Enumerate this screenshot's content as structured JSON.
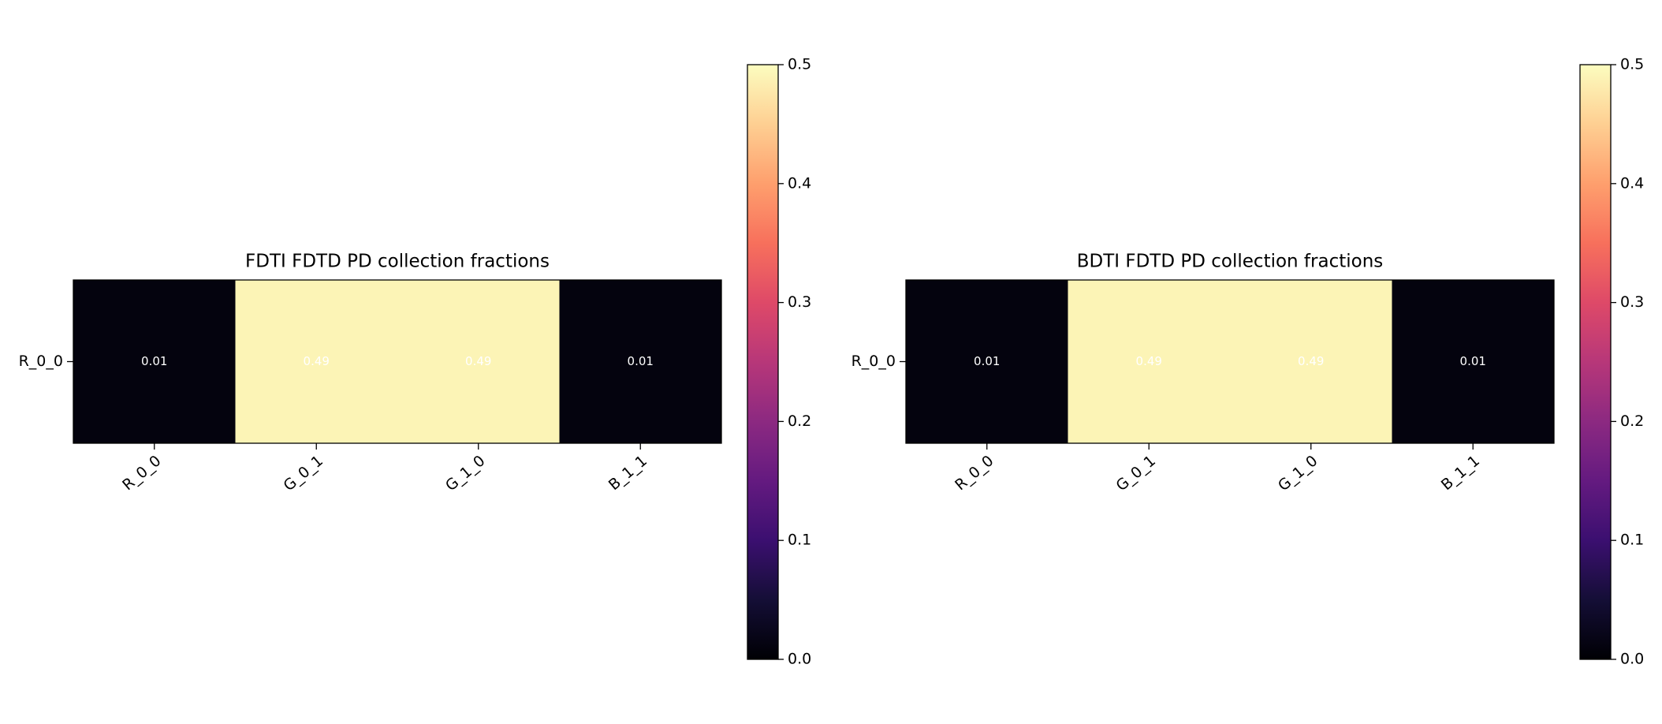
{
  "chart_data": [
    {
      "type": "heatmap",
      "title": "FDTI FDTD PD collection fractions",
      "x_categories": [
        "R_0_0",
        "G_0_1",
        "G_1_0",
        "B_1_1"
      ],
      "y_categories": [
        "R_0_0"
      ],
      "values": [
        [
          0.01,
          0.49,
          0.49,
          0.01
        ]
      ],
      "colormap": "magma",
      "clim": [
        0,
        0.5
      ],
      "cticks": [
        {
          "value": 0,
          "label": "0.0"
        },
        0.1,
        0.2,
        0.3,
        0.4,
        0.5
      ]
    },
    {
      "type": "heatmap",
      "title": "BDTI FDTD PD collection fractions",
      "x_categories": [
        "R_0_0",
        "G_0_1",
        "G_1_0",
        "B_1_1"
      ],
      "y_categories": [
        "R_0_0"
      ],
      "values": [
        [
          0.01,
          0.49,
          0.49,
          0.01
        ]
      ],
      "colormap": "magma",
      "clim": [
        0,
        0.5
      ],
      "cticks": [
        {
          "value": 0,
          "label": "0.0"
        },
        0.1,
        0.2,
        0.3,
        0.4,
        0.5
      ]
    }
  ]
}
